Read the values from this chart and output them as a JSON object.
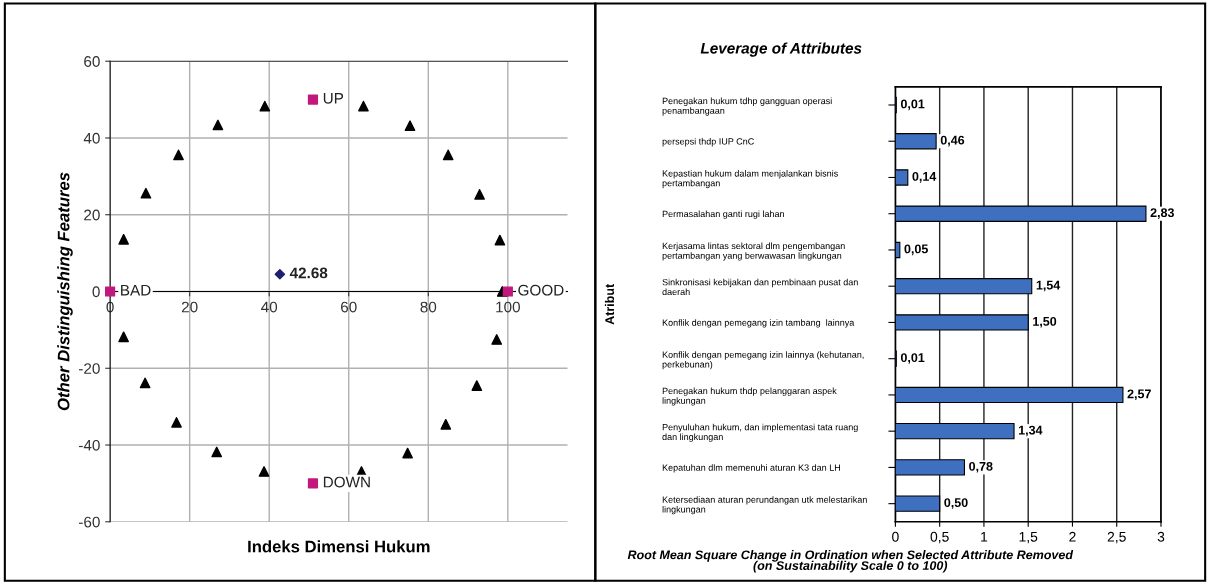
{
  "chart_data": [
    {
      "type": "scatter",
      "xlabel": "Indeks Dimensi Hukum",
      "ylabel": "Other Distinguishing Features",
      "xlim": [
        0,
        115
      ],
      "ylim": [
        -60,
        60
      ],
      "xticks": [
        0,
        20,
        40,
        60,
        80,
        100
      ],
      "yticks": [
        -60,
        -40,
        -20,
        0,
        20,
        40,
        60
      ],
      "grid": true,
      "annotations": [
        {
          "text": "42.68",
          "x": 42.68,
          "y": 4.5
        }
      ],
      "series": [
        {
          "color": "#000000",
          "marker": "triangle",
          "x": [
            3.4,
            9.0,
            17.2,
            27.1,
            38.9,
            63.7,
            75.4,
            85.0,
            92.9,
            98.0,
            98.6,
            97.2,
            92.2,
            84.4,
            74.8,
            63.2,
            38.7,
            26.8,
            16.7,
            8.8,
            3.4
          ],
          "values": [
            13.6,
            25.6,
            35.6,
            43.4,
            48.3,
            48.3,
            43.2,
            35.6,
            25.3,
            13.4,
            0,
            -12.5,
            -24.5,
            -34.6,
            -42.1,
            -46.9,
            -46.9,
            -41.8,
            -34.1,
            -23.8,
            -11.8
          ]
        },
        {
          "color": "#c2187e",
          "marker": "square",
          "x": [
            0,
            100,
            51,
            51
          ],
          "values": [
            0,
            0,
            50,
            -50
          ],
          "value_labels": [
            "BAD",
            "GOOD",
            "UP",
            "DOWN"
          ]
        },
        {
          "color": "#1f1f6e",
          "marker": "diamond",
          "x": [
            42.68
          ],
          "values": [
            4.5
          ]
        }
      ]
    },
    {
      "type": "bar",
      "orientation": "horizontal",
      "title": "Leverage of Attributes",
      "ylabel": "Atribut",
      "xlabel": "Root Mean Square Change in Ordination when Selected Attribute Removed\n(on Sustainability Scale 0 to 100)",
      "categories": [
        "Penegakan hukum tdhp gangguan operasi\npenambangaan",
        "persepsi thdp IUP CnC",
        "Kepastian hukum dalam menjalankan bisnis\npertambangan",
        "Permasalahan ganti rugi lahan",
        "Kerjasama lintas sektoral dlm pengembangan\npertambangan yang berwawasan lingkungan",
        "Sinkronisasi kebijakan dan pembinaan pusat dan\ndaerah",
        "Konflik dengan pemegang izin tambang  lainnya",
        "Konflik dengan pemegang izin lainnya (kehutanan,\nperkebunan)",
        "Penegakan hukum thdp pelanggaran aspek\nlingkungan",
        "Penyuluhan hukum, dan implementasi tata ruang\ndan lingkungan",
        "Kepatuhan dlm memenuhi aturan K3 dan LH",
        "Ketersediaan aturan perundangan utk melestarikan\nlingkungan"
      ],
      "values": [
        0.01,
        0.46,
        0.14,
        2.83,
        0.05,
        1.54,
        1.5,
        0.01,
        2.57,
        1.34,
        0.78,
        0.5
      ],
      "value_labels": [
        "0,01",
        "0,46",
        "0,14",
        "2,83",
        "0,05",
        "1,54",
        "1,50",
        "0,01",
        "2,57",
        "1,34",
        "0,78",
        "0,50"
      ],
      "color": "#3f6fbf",
      "xlim": [
        0,
        3
      ],
      "xticks": [
        0,
        {
          "value": 0.5,
          "label": "0,5"
        },
        1,
        {
          "value": 1.5,
          "label": "1,5"
        },
        2,
        {
          "value": 2.5,
          "label": "2,5"
        },
        3
      ],
      "grid": "x"
    }
  ]
}
